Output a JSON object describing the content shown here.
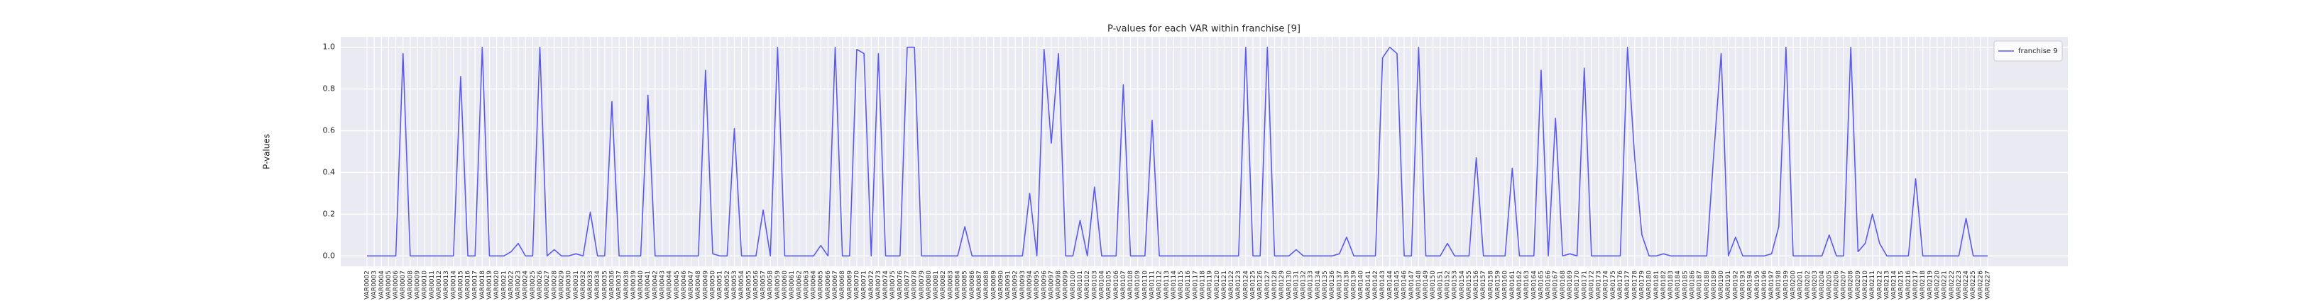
{
  "chart_data": {
    "type": "line",
    "title": "P-values for each VAR within franchise [9]",
    "ylabel": "P-values",
    "categories": [
      "VAR0002",
      "VAR0003",
      "VAR0004",
      "VAR0005",
      "VAR0006",
      "VAR0007",
      "VAR0008",
      "VAR0009",
      "VAR0010",
      "VAR0011",
      "VAR0012",
      "VAR0013",
      "VAR0014",
      "VAR0015",
      "VAR0016",
      "VAR0017",
      "VAR0018",
      "VAR0019",
      "VAR0020",
      "VAR0021",
      "VAR0022",
      "VAR0023",
      "VAR0024",
      "VAR0025",
      "VAR0026",
      "VAR0027",
      "VAR0028",
      "VAR0029",
      "VAR0030",
      "VAR0031",
      "VAR0032",
      "VAR0033",
      "VAR0034",
      "VAR0035",
      "VAR0036",
      "VAR0037",
      "VAR0038",
      "VAR0039",
      "VAR0040",
      "VAR0041",
      "VAR0042",
      "VAR0043",
      "VAR0044",
      "VAR0045",
      "VAR0046",
      "VAR0047",
      "VAR0048",
      "VAR0049",
      "VAR0050",
      "VAR0051",
      "VAR0052",
      "VAR0053",
      "VAR0054",
      "VAR0055",
      "VAR0056",
      "VAR0057",
      "VAR0058",
      "VAR0059",
      "VAR0060",
      "VAR0061",
      "VAR0062",
      "VAR0063",
      "VAR0064",
      "VAR0065",
      "VAR0066",
      "VAR0067",
      "VAR0068",
      "VAR0069",
      "VAR0070",
      "VAR0071",
      "VAR0072",
      "VAR0073",
      "VAR0074",
      "VAR0075",
      "VAR0076",
      "VAR0077",
      "VAR0078",
      "VAR0079",
      "VAR0080",
      "VAR0081",
      "VAR0082",
      "VAR0083",
      "VAR0084",
      "VAR0085",
      "VAR0086",
      "VAR0087",
      "VAR0088",
      "VAR0089",
      "VAR0090",
      "VAR0091",
      "VAR0092",
      "VAR0093",
      "VAR0094",
      "VAR0095",
      "VAR0096",
      "VAR0097",
      "VAR0098",
      "VAR0099",
      "VAR0100",
      "VAR0101",
      "VAR0102",
      "VAR0103",
      "VAR0104",
      "VAR0105",
      "VAR0106",
      "VAR0107",
      "VAR0108",
      "VAR0109",
      "VAR0110",
      "VAR0111",
      "VAR0112",
      "VAR0113",
      "VAR0114",
      "VAR0115",
      "VAR0116",
      "VAR0117",
      "VAR0118",
      "VAR0119",
      "VAR0120",
      "VAR0121",
      "VAR0122",
      "VAR0123",
      "VAR0124",
      "VAR0125",
      "VAR0126",
      "VAR0127",
      "VAR0128",
      "VAR0129",
      "VAR0130",
      "VAR0131",
      "VAR0132",
      "VAR0133",
      "VAR0134",
      "VAR0135",
      "VAR0136",
      "VAR0137",
      "VAR0138",
      "VAR0139",
      "VAR0140",
      "VAR0141",
      "VAR0142",
      "VAR0143",
      "VAR0144",
      "VAR0145",
      "VAR0146",
      "VAR0147",
      "VAR0148",
      "VAR0149",
      "VAR0150",
      "VAR0151",
      "VAR0152",
      "VAR0153",
      "VAR0154",
      "VAR0155",
      "VAR0156",
      "VAR0157",
      "VAR0158",
      "VAR0159",
      "VAR0160",
      "VAR0161",
      "VAR0162",
      "VAR0163",
      "VAR0164",
      "VAR0165",
      "VAR0166",
      "VAR0167",
      "VAR0168",
      "VAR0169",
      "VAR0170",
      "VAR0171",
      "VAR0172",
      "VAR0173",
      "VAR0174",
      "VAR0175",
      "VAR0176",
      "VAR0177",
      "VAR0178",
      "VAR0179",
      "VAR0180",
      "VAR0181",
      "VAR0182",
      "VAR0183",
      "VAR0184",
      "VAR0185",
      "VAR0186",
      "VAR0187",
      "VAR0188",
      "VAR0189",
      "VAR0190",
      "VAR0191",
      "VAR0192",
      "VAR0193",
      "VAR0194",
      "VAR0195",
      "VAR0196",
      "VAR0197",
      "VAR0198",
      "VAR0199",
      "VAR0200",
      "VAR0201",
      "VAR0202",
      "VAR0203",
      "VAR0204",
      "VAR0205",
      "VAR0206",
      "VAR0207",
      "VAR0208",
      "VAR0209",
      "VAR0210",
      "VAR0211",
      "VAR0212",
      "VAR0213",
      "VAR0214",
      "VAR0215",
      "VAR0216",
      "VAR0217",
      "VAR0218",
      "VAR0219",
      "VAR0220",
      "VAR0221",
      "VAR0222",
      "VAR0223",
      "VAR0224",
      "VAR0225",
      "VAR0226",
      "VAR0227"
    ],
    "series": [
      {
        "name": "franchise 9",
        "color": "#5a5af0",
        "values": [
          0,
          0,
          0,
          0,
          0,
          0.97,
          0,
          0,
          0,
          0,
          0,
          0,
          0,
          0.86,
          0,
          0,
          1.0,
          0,
          0,
          0,
          0.02,
          0.06,
          0,
          0,
          1.0,
          0,
          0.03,
          0,
          0,
          0.01,
          0,
          0.21,
          0,
          0,
          0.74,
          0,
          0,
          0,
          0,
          0.77,
          0,
          0,
          0,
          0,
          0,
          0,
          0,
          0.89,
          0.01,
          0,
          0,
          0.61,
          0,
          0,
          0,
          0.22,
          0,
          1.0,
          0,
          0,
          0,
          0,
          0,
          0.05,
          0,
          1.0,
          0,
          0,
          0.99,
          0.97,
          0,
          0.97,
          0,
          0,
          0,
          1.0,
          1.0,
          0,
          0,
          0,
          0,
          0,
          0,
          0.14,
          0,
          0,
          0,
          0,
          0,
          0,
          0,
          0,
          0.3,
          0,
          0.99,
          0.54,
          0.97,
          0,
          0,
          0.17,
          0,
          0.33,
          0,
          0,
          0,
          0.82,
          0,
          0,
          0,
          0.65,
          0,
          0,
          0,
          0,
          0,
          0,
          0,
          0,
          0,
          0,
          0,
          0,
          1.0,
          0,
          0,
          1.0,
          0,
          0,
          0,
          0.03,
          0,
          0,
          0,
          0,
          0,
          0.01,
          0.09,
          0,
          0,
          0,
          0,
          0.95,
          1.0,
          0.97,
          0,
          0,
          1.0,
          0,
          0,
          0,
          0.06,
          0,
          0,
          0,
          0.47,
          0,
          0,
          0,
          0,
          0.42,
          0,
          0,
          0,
          0.89,
          0,
          0.66,
          0,
          0.01,
          0,
          0.9,
          0,
          0,
          0,
          0,
          0,
          1.0,
          0.47,
          0.1,
          0,
          0,
          0.01,
          0,
          0,
          0,
          0,
          0,
          0,
          0.5,
          0.97,
          0,
          0.09,
          0,
          0,
          0,
          0,
          0.01,
          0.14,
          1.0,
          0,
          0,
          0,
          0,
          0,
          0.1,
          0,
          0,
          1.0,
          0.02,
          0.06,
          0.2,
          0.06,
          0,
          0,
          0,
          0,
          0.37,
          0,
          0,
          0,
          0,
          0,
          0,
          0.18,
          0,
          0,
          0
        ]
      }
    ],
    "ylim": [
      -0.05,
      1.05
    ],
    "yticks": [
      {
        "value": 0,
        "label": "0.0"
      },
      0.2,
      0.4,
      0.6,
      0.8,
      {
        "value": 1,
        "label": "1.0"
      }
    ],
    "grid": true,
    "legend": "upper right"
  }
}
